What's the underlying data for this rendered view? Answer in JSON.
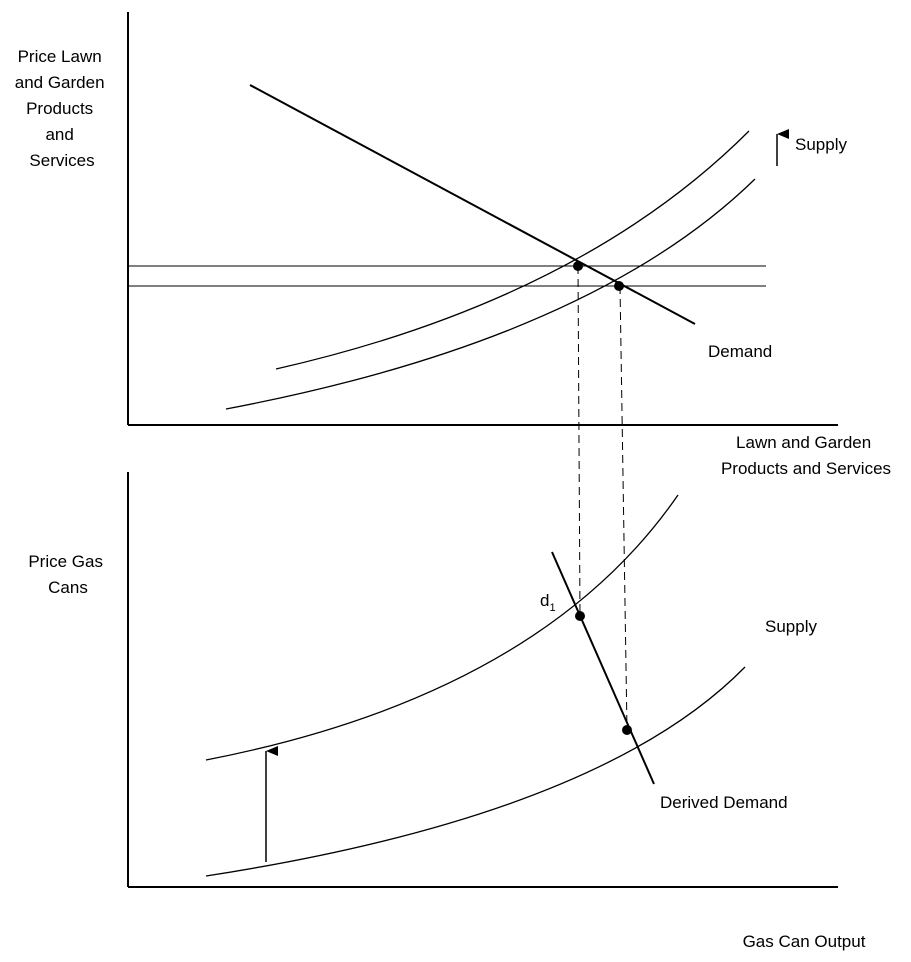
{
  "top_graph": {
    "y_axis_label": [
      "Price Lawn",
      "and Garden",
      "Products",
      "and",
      "Services"
    ],
    "x_axis_label": [
      "Lawn and Garden",
      "Products and Services"
    ],
    "supply_label": "Supply",
    "demand_label": "Demand"
  },
  "bottom_graph": {
    "y_axis_label": [
      "Price Gas",
      "Cans"
    ],
    "x_axis_label": "Gas Can Output",
    "supply_label": "Supply",
    "derived_demand_label": "Derived Demand",
    "point_label_main": "d",
    "point_label_sub": "1"
  },
  "colors": {
    "ink": "#000000",
    "background": "#ffffff"
  }
}
